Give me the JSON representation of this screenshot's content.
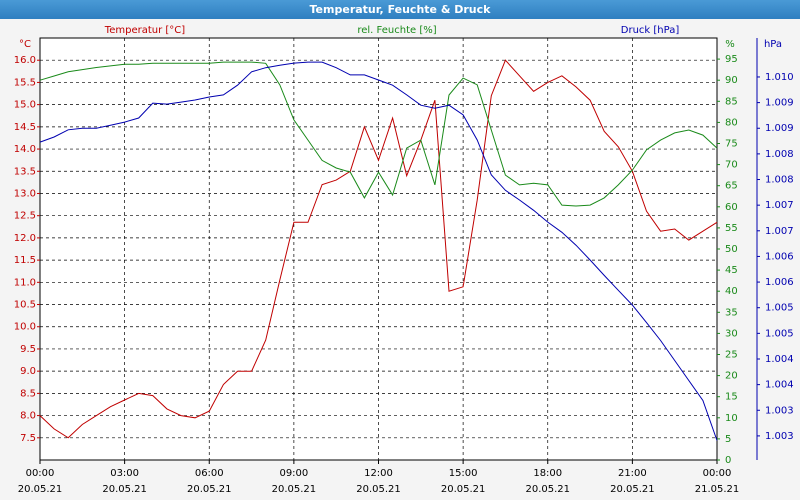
{
  "chart_data": {
    "type": "line",
    "title": "Temperatur, Feuchte & Druck",
    "y_label": "°C",
    "y2_label": "%",
    "y3_label": "hPa",
    "xlim": [
      0,
      24
    ],
    "xticks": [
      {
        "value": 0,
        "label": "00:00"
      },
      {
        "value": 3,
        "label": "03:00"
      },
      {
        "value": 6,
        "label": "06:00"
      },
      {
        "value": 9,
        "label": "09:00"
      },
      {
        "value": 12,
        "label": "12:00"
      },
      {
        "value": 15,
        "label": "15:00"
      },
      {
        "value": 18,
        "label": "18:00"
      },
      {
        "value": 21,
        "label": "21:00"
      },
      {
        "value": 24,
        "label": "00:00"
      }
    ],
    "xtick_dates": [
      "20.05.21",
      "20.05.21",
      "20.05.21",
      "20.05.21",
      "20.05.21",
      "20.05.21",
      "20.05.21",
      "20.05.21",
      "21.05.21"
    ],
    "ylim": [
      7.0,
      16.5
    ],
    "yticks": [
      7.5,
      {
        "value": 8,
        "label": "8.0"
      },
      8.5,
      {
        "value": 9,
        "label": "9.0"
      },
      9.5,
      {
        "value": 10,
        "label": "10.0"
      },
      10.5,
      {
        "value": 11,
        "label": "11.0"
      },
      11.5,
      {
        "value": 12,
        "label": "12.0"
      },
      12.5,
      {
        "value": 13,
        "label": "13.0"
      },
      13.5,
      {
        "value": 14,
        "label": "14.0"
      },
      14.5,
      {
        "value": 15,
        "label": "15.0"
      },
      15.5,
      {
        "value": 16,
        "label": "16.0"
      }
    ],
    "y2lim": [
      0,
      100
    ],
    "y2ticks": [
      0,
      5,
      10,
      15,
      20,
      25,
      30,
      35,
      40,
      45,
      50,
      55,
      60,
      65,
      70,
      75,
      80,
      85,
      90,
      95
    ],
    "y3lim": [
      1.00233,
      1.01056
    ],
    "y3ticks": [
      {
        "value": 1.0098,
        "label": "1.010"
      },
      {
        "value": 1.0093,
        "label": "1.009"
      },
      {
        "value": 1.0088,
        "label": "1.009"
      },
      {
        "value": 1.0083,
        "label": "1.008"
      },
      {
        "value": 1.0078,
        "label": "1.008"
      },
      {
        "value": 1.0073,
        "label": "1.007"
      },
      {
        "value": 1.0068,
        "label": "1.007"
      },
      {
        "value": 1.0063,
        "label": "1.006"
      },
      {
        "value": 1.0058,
        "label": "1.006"
      },
      {
        "value": 1.0053,
        "label": "1.005"
      },
      {
        "value": 1.0048,
        "label": "1.005"
      },
      {
        "value": 1.0043,
        "label": "1.004"
      },
      {
        "value": 1.0038,
        "label": "1.004"
      },
      {
        "value": 1.0033,
        "label": "1.003"
      },
      {
        "value": 1.0028,
        "label": "1.003"
      }
    ],
    "grid": true,
    "x": [
      0,
      0.5,
      1,
      1.5,
      2,
      2.5,
      3,
      3.5,
      4,
      4.5,
      5,
      5.5,
      6,
      6.5,
      7,
      7.5,
      8,
      8.5,
      9,
      9.5,
      10,
      10.5,
      11,
      11.5,
      12,
      12.5,
      13,
      13.5,
      14,
      14.5,
      15,
      15.5,
      16,
      16.5,
      17,
      17.5,
      18,
      18.5,
      19,
      19.5,
      20,
      20.5,
      21,
      21.5,
      22,
      22.5,
      23,
      23.5,
      24
    ],
    "series": [
      {
        "name": "Temperatur [°C]",
        "color": "#c00000",
        "axis": "y",
        "values": [
          8.0,
          7.7,
          7.5,
          7.8,
          8.0,
          8.2,
          8.35,
          8.5,
          8.45,
          8.15,
          8.0,
          7.95,
          8.1,
          8.7,
          9.0,
          9.0,
          9.7,
          11.05,
          12.35,
          12.35,
          13.2,
          13.3,
          13.5,
          14.5,
          13.75,
          14.7,
          13.4,
          14.2,
          15.1,
          10.8,
          10.9,
          12.85,
          15.2,
          16.0,
          15.65,
          15.3,
          15.5,
          15.65,
          15.4,
          15.1,
          14.4,
          14.05,
          13.5,
          12.6,
          12.15,
          12.2,
          11.95,
          12.15,
          12.35
        ]
      },
      {
        "name": "rel. Feuchte [%]",
        "color": "#1a8a1a",
        "axis": "y2",
        "values": [
          90,
          91,
          92,
          92.5,
          93,
          93.4,
          93.8,
          93.8,
          94,
          94,
          94,
          94,
          94,
          94.3,
          94.3,
          94.3,
          94,
          88.9,
          80.6,
          75.8,
          71,
          69.2,
          68.2,
          62.1,
          68.2,
          62.8,
          73.9,
          75.8,
          65.2,
          86.5,
          90.5,
          88.9,
          78.2,
          67.5,
          65.2,
          65.6,
          65.2,
          60.4,
          60.2,
          60.4,
          62.1,
          65.2,
          68.7,
          73.5,
          75.8,
          77.5,
          78.2,
          77,
          73.9
        ]
      },
      {
        "name": "Druck [hPa]",
        "color": "#0000b0",
        "axis": "y3",
        "values": [
          1.00853,
          1.00863,
          1.00877,
          1.0088,
          1.0088,
          1.00886,
          1.00892,
          1.009,
          1.00929,
          1.00927,
          1.00931,
          1.00935,
          1.00941,
          1.00945,
          1.00964,
          1.0099,
          1.00998,
          1.01003,
          1.01007,
          1.01009,
          1.01009,
          1.00998,
          1.00984,
          1.00984,
          1.00974,
          1.00964,
          1.00945,
          1.00925,
          1.00919,
          1.00925,
          1.00906,
          1.00857,
          1.00789,
          1.00759,
          1.0074,
          1.0072,
          1.00697,
          1.00677,
          1.00652,
          1.00623,
          1.00593,
          1.00564,
          1.00535,
          1.00501,
          1.00466,
          1.00427,
          1.00388,
          1.00349,
          1.00271
        ]
      }
    ]
  }
}
